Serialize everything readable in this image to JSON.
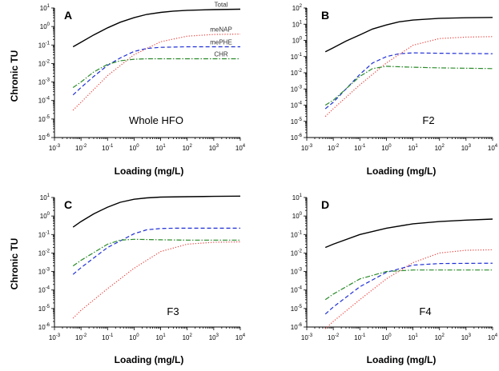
{
  "chart_data": [
    {
      "type": "line",
      "panel_letter": "A",
      "annotation": "Whole HFO",
      "xlabel": "Loading (mg/L)",
      "ylabel": "Chronic TU",
      "x_scale": "log",
      "y_scale": "log",
      "xlim": [
        0.001,
        10000
      ],
      "ylim": [
        1e-06,
        10
      ],
      "series_labels_visible": true,
      "series": [
        {
          "name": "Total",
          "style": "solid",
          "color": "#000000",
          "x": [
            0.005,
            0.01,
            0.03,
            0.1,
            0.3,
            1,
            3,
            10,
            30,
            100,
            1000,
            10000
          ],
          "y": [
            0.08,
            0.14,
            0.35,
            0.85,
            1.7,
            3.0,
            4.5,
            5.8,
            6.8,
            7.5,
            8.2,
            8.6
          ]
        },
        {
          "name": "meNAP",
          "style": "dotted",
          "color": "#e8413c",
          "x": [
            0.005,
            0.01,
            0.1,
            1,
            10,
            100,
            1000,
            10000
          ],
          "y": [
            3e-05,
            8e-05,
            0.0022,
            0.03,
            0.15,
            0.3,
            0.37,
            0.39
          ]
        },
        {
          "name": "mePHE",
          "style": "dashed",
          "color": "#1f2fd6",
          "x": [
            0.005,
            0.01,
            0.03,
            0.1,
            0.3,
            1,
            3,
            10,
            100,
            10000
          ],
          "y": [
            0.0002,
            0.0005,
            0.002,
            0.008,
            0.02,
            0.045,
            0.065,
            0.075,
            0.08,
            0.08
          ]
        },
        {
          "name": "CHR",
          "style": "dashdot",
          "color": "#2a8a2a",
          "x": [
            0.005,
            0.01,
            0.03,
            0.1,
            0.3,
            1,
            3,
            10,
            100,
            10000
          ],
          "y": [
            0.0005,
            0.001,
            0.0035,
            0.009,
            0.014,
            0.017,
            0.018,
            0.018,
            0.018,
            0.018
          ]
        }
      ]
    },
    {
      "type": "line",
      "panel_letter": "B",
      "annotation": "F2",
      "xlabel": "Loading (mg/L)",
      "ylabel": "",
      "x_scale": "log",
      "y_scale": "log",
      "xlim": [
        0.001,
        10000
      ],
      "ylim": [
        1e-06,
        100
      ],
      "series_labels_visible": false,
      "series": [
        {
          "name": "Total",
          "style": "solid",
          "color": "#000000",
          "x": [
            0.005,
            0.01,
            0.03,
            0.1,
            0.3,
            1,
            3,
            10,
            100,
            1000,
            10000
          ],
          "y": [
            0.2,
            0.35,
            0.9,
            2.2,
            5,
            9,
            14,
            18,
            23,
            25,
            26
          ]
        },
        {
          "name": "meNAP",
          "style": "dotted",
          "color": "#e8413c",
          "x": [
            0.005,
            0.01,
            0.1,
            1,
            10,
            100,
            1000,
            10000
          ],
          "y": [
            2e-05,
            6e-05,
            0.0018,
            0.04,
            0.5,
            1.3,
            1.6,
            1.7
          ]
        },
        {
          "name": "mePHE",
          "style": "dashed",
          "color": "#1f2fd6",
          "x": [
            0.005,
            0.01,
            0.1,
            0.3,
            1,
            3,
            10,
            100,
            10000
          ],
          "y": [
            6e-05,
            0.00015,
            0.008,
            0.04,
            0.1,
            0.15,
            0.17,
            0.16,
            0.15
          ]
        },
        {
          "name": "CHR",
          "style": "dashdot",
          "color": "#2a8a2a",
          "x": [
            0.005,
            0.01,
            0.1,
            0.3,
            1,
            10,
            100,
            10000
          ],
          "y": [
            0.0001,
            0.0002,
            0.006,
            0.018,
            0.025,
            0.022,
            0.02,
            0.018
          ]
        }
      ]
    },
    {
      "type": "line",
      "panel_letter": "C",
      "annotation": "F3",
      "xlabel": "Loading (mg/L)",
      "ylabel": "Chronic TU",
      "x_scale": "log",
      "y_scale": "log",
      "xlim": [
        0.001,
        10000
      ],
      "ylim": [
        1e-06,
        10
      ],
      "series_labels_visible": false,
      "series": [
        {
          "name": "Total",
          "style": "solid",
          "color": "#000000",
          "x": [
            0.005,
            0.01,
            0.03,
            0.1,
            0.3,
            1,
            3,
            10,
            100,
            1000,
            10000
          ],
          "y": [
            0.25,
            0.5,
            1.3,
            3,
            5.5,
            8,
            9.5,
            10.5,
            11,
            11.5,
            11.8
          ]
        },
        {
          "name": "meNAP",
          "style": "dotted",
          "color": "#e8413c",
          "x": [
            0.005,
            0.01,
            0.1,
            1,
            10,
            100,
            1000,
            10000
          ],
          "y": [
            3e-06,
            8e-06,
            0.00012,
            0.0015,
            0.012,
            0.03,
            0.038,
            0.04
          ]
        },
        {
          "name": "mePHE",
          "style": "dashed",
          "color": "#1f2fd6",
          "x": [
            0.005,
            0.01,
            0.1,
            1,
            3,
            10,
            30,
            100,
            10000
          ],
          "y": [
            0.0007,
            0.0016,
            0.02,
            0.11,
            0.18,
            0.21,
            0.22,
            0.22,
            0.22
          ]
        },
        {
          "name": "CHR",
          "style": "dashdot",
          "color": "#2a8a2a",
          "x": [
            0.005,
            0.01,
            0.1,
            0.3,
            1,
            10,
            100,
            10000
          ],
          "y": [
            0.002,
            0.004,
            0.03,
            0.05,
            0.055,
            0.052,
            0.05,
            0.05
          ]
        }
      ]
    },
    {
      "type": "line",
      "panel_letter": "D",
      "annotation": "F4",
      "xlabel": "Loading (mg/L)",
      "ylabel": "",
      "x_scale": "log",
      "y_scale": "log",
      "xlim": [
        0.001,
        10000
      ],
      "ylim": [
        1e-06,
        10
      ],
      "series_labels_visible": false,
      "series": [
        {
          "name": "Total",
          "style": "solid",
          "color": "#000000",
          "x": [
            0.005,
            0.01,
            0.1,
            1,
            10,
            100,
            1000,
            10000
          ],
          "y": [
            0.02,
            0.03,
            0.1,
            0.22,
            0.38,
            0.5,
            0.6,
            0.68
          ]
        },
        {
          "name": "meNAP",
          "style": "dotted",
          "color": "#e8413c",
          "x": [
            0.005,
            0.01,
            0.1,
            1,
            10,
            100,
            1000,
            10000
          ],
          "y": [
            8e-07,
            2e-06,
            3e-05,
            0.0004,
            0.003,
            0.01,
            0.014,
            0.015
          ]
        },
        {
          "name": "mePHE",
          "style": "dashed",
          "color": "#1f2fd6",
          "x": [
            0.005,
            0.01,
            0.1,
            1,
            10,
            100,
            10000
          ],
          "y": [
            5e-06,
            1.2e-05,
            0.00015,
            0.0009,
            0.0022,
            0.0027,
            0.0028
          ]
        },
        {
          "name": "CHR",
          "style": "dashdot",
          "color": "#2a8a2a",
          "x": [
            0.005,
            0.01,
            0.1,
            1,
            10,
            100,
            10000
          ],
          "y": [
            3e-05,
            6e-05,
            0.0004,
            0.001,
            0.0012,
            0.0012,
            0.0012
          ]
        }
      ]
    }
  ]
}
